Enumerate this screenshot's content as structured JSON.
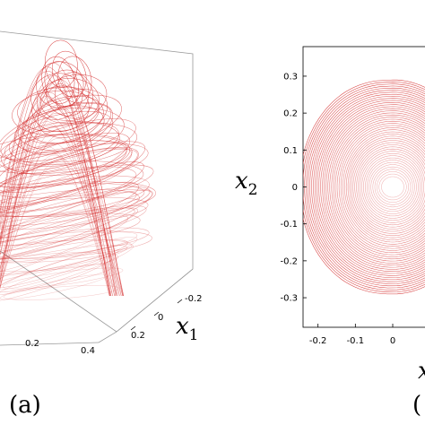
{
  "chart_data": [
    {
      "panel": "(a)",
      "type": "line",
      "variant": "3d-attractor",
      "series_color": "#d42a2a",
      "x_axis_label_name": "x",
      "x_axis_label_sub": "1",
      "x1_ticks": [
        "-0.2",
        "0",
        "0.2"
      ],
      "front_axis_ticks": [
        "0.2",
        "0.4"
      ],
      "grid": false
    },
    {
      "panel": "(b)",
      "type": "line",
      "variant": "phase-portrait",
      "series_color": "#d42a2a",
      "ylabel_name": "x",
      "ylabel_sub": "2",
      "xlabel_name": "x",
      "xlim": [
        -0.24,
        0.12
      ],
      "ylim": [
        -0.38,
        0.38
      ],
      "x_ticks": [
        -0.2,
        -0.1,
        0
      ],
      "x_tick_labels": [
        "-0.2",
        "-0.1",
        "0"
      ],
      "y_ticks": [
        0.3,
        0.2,
        0.1,
        0,
        -0.1,
        -0.2,
        -0.3
      ],
      "y_tick_labels": [
        "0.3",
        "0.2",
        "0.1",
        "0",
        "-0.1",
        "-0.2",
        "-0.3"
      ],
      "focus": [
        0.0,
        0.0
      ],
      "grid": false
    }
  ]
}
